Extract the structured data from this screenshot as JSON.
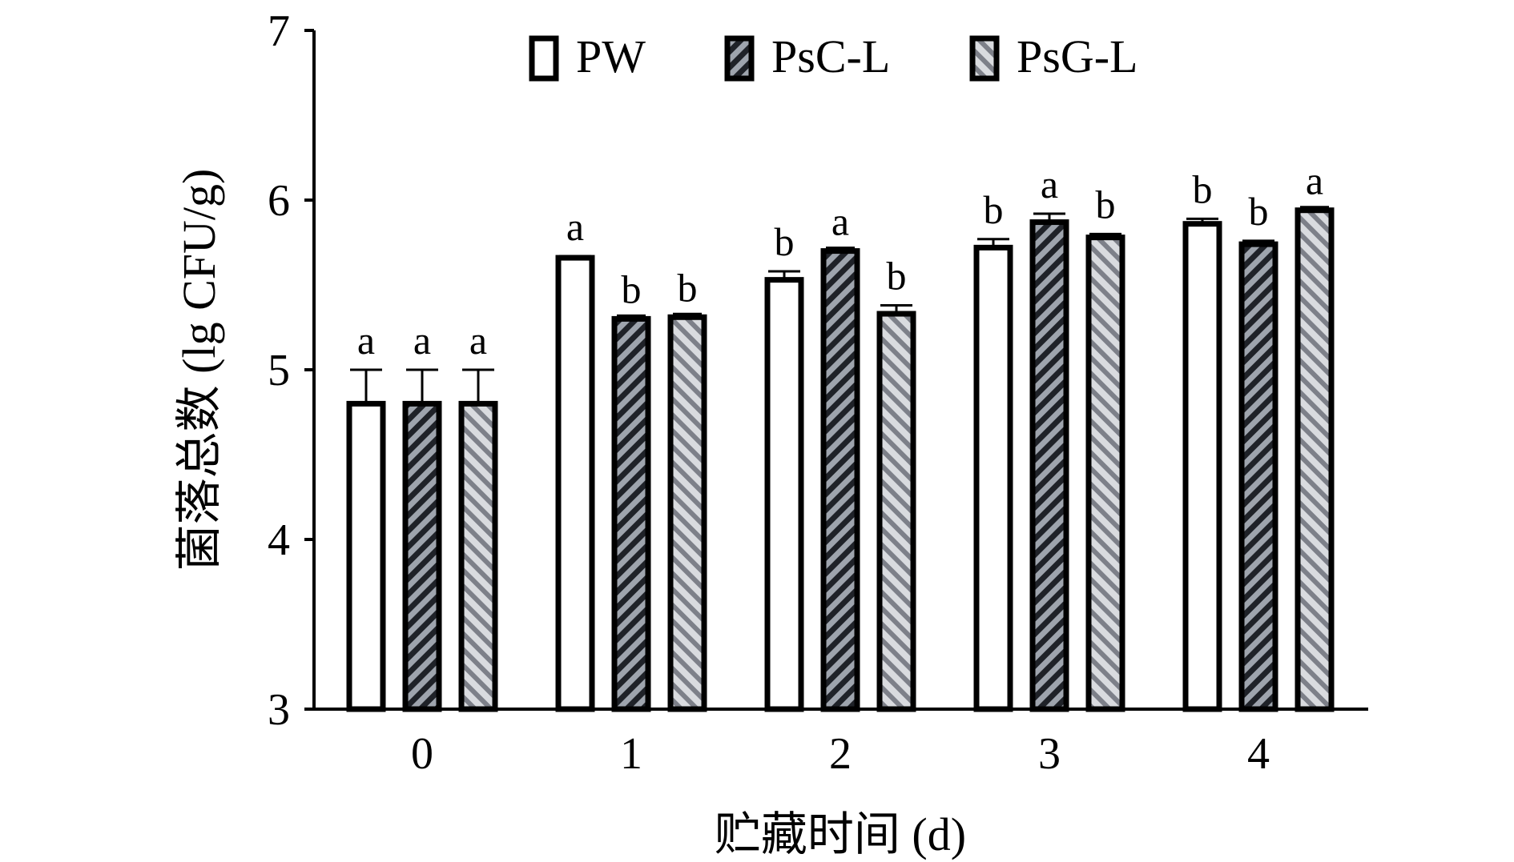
{
  "chart_data": {
    "type": "bar",
    "xlabel": "贮藏时间 (d)",
    "ylabel": "菌落总数 (lg CFU/g)",
    "categories": [
      "0",
      "1",
      "2",
      "3",
      "4"
    ],
    "ylim": [
      3,
      7
    ],
    "yticks": [
      3,
      4,
      5,
      6,
      7
    ],
    "legend_position": "top",
    "series": [
      {
        "name": "PW",
        "pattern": "white",
        "values": [
          4.8,
          5.66,
          5.53,
          5.72,
          5.86
        ],
        "errors": [
          0.2,
          0.01,
          0.05,
          0.05,
          0.03
        ],
        "labels": [
          "a",
          "a",
          "b",
          "b",
          "b"
        ]
      },
      {
        "name": "PsC-L",
        "pattern": "dark-hatch",
        "values": [
          4.8,
          5.3,
          5.7,
          5.87,
          5.74
        ],
        "errors": [
          0.2,
          0.0,
          0.0,
          0.05,
          0.02
        ],
        "labels": [
          "a",
          "b",
          "a",
          "a",
          "b"
        ]
      },
      {
        "name": "PsG-L",
        "pattern": "light-hatch",
        "values": [
          4.8,
          5.31,
          5.33,
          5.78,
          5.94
        ],
        "errors": [
          0.2,
          0.0,
          0.05,
          0.02,
          0.0
        ],
        "labels": [
          "a",
          "b",
          "b",
          "b",
          "a"
        ]
      }
    ],
    "colors": {
      "outline": "#000000",
      "white_fill": "#ffffff",
      "dark_hatch_bg": "#9ea4ad",
      "dark_hatch_line": "#1f2228",
      "light_hatch_bg": "#d9dbdf",
      "light_hatch_line": "#7d8089"
    }
  }
}
